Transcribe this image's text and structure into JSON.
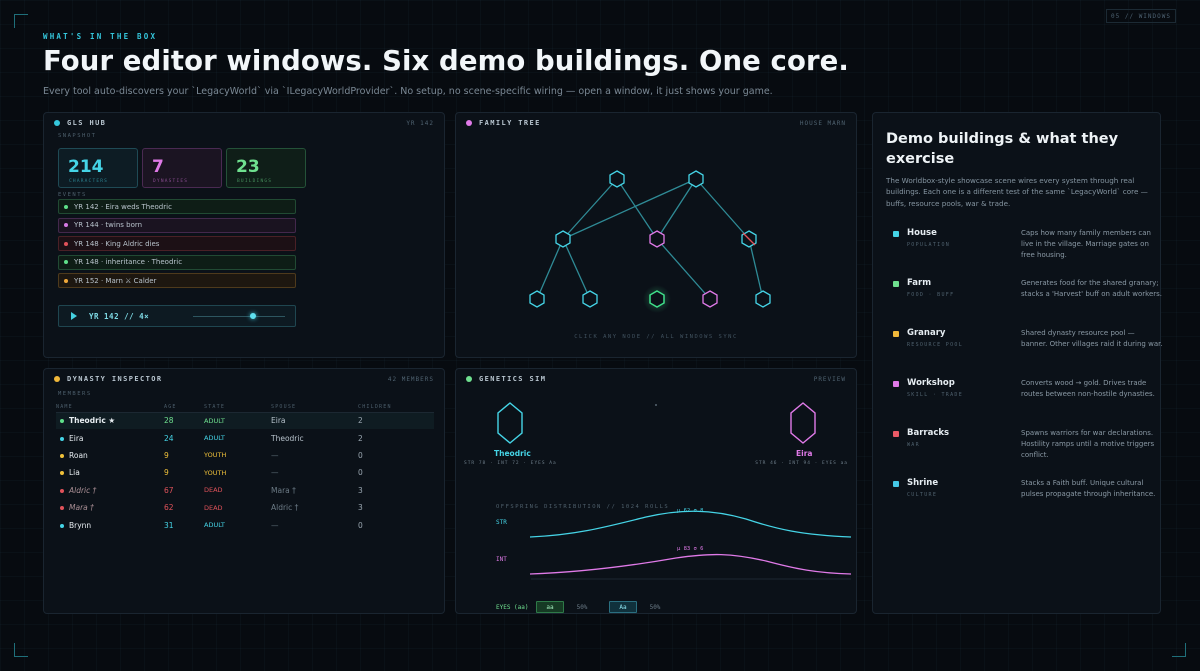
{
  "window": {
    "chip": "05 // WINDOWS"
  },
  "hero": {
    "eyebrow": "WHAT'S IN THE BOX",
    "headline": "Four editor windows. Six demo buildings. One core.",
    "subline": "Every tool auto-discovers your `LegacyWorld` via `ILegacyWorldProvider`. No setup, no scene-specific wiring — open a window, it just shows your game."
  },
  "gls_hub": {
    "title": "GLS HUB",
    "meta": "YR 142",
    "snapshot_label": "SNAPSHOT",
    "stats": [
      {
        "value": "214",
        "label": "CHARACTERS",
        "color": "#45d4e6"
      },
      {
        "value": "7",
        "label": "DYNASTIES",
        "color": "#e07ae8"
      },
      {
        "value": "23",
        "label": "BUILDINGS",
        "color": "#6fe08f"
      }
    ],
    "events_label": "EVENTS",
    "events": [
      {
        "text": "YR 142 · Eira weds Theodric",
        "color": "#5fe08a"
      },
      {
        "text": "YR 144 · twins born",
        "color": "#d67ae4"
      },
      {
        "text": "YR 148 · King Aldric dies",
        "color": "#e0525a"
      },
      {
        "text": "YR 148 · inheritance · Theodric",
        "color": "#5fe08a"
      },
      {
        "text": "YR 152 · Marn ⚔ Calder",
        "color": "#f0a83a"
      }
    ],
    "player_label": "YR 142 // 4×",
    "timeline_progress": 0.65
  },
  "family_tree": {
    "title": "FAMILY TREE",
    "meta": "HOUSE MARN",
    "footer": "CLICK ANY NODE // ALL WINDOWS SYNC"
  },
  "dynasty": {
    "title": "DYNASTY INSPECTOR",
    "meta": "42 MEMBERS",
    "members_label": "MEMBERS",
    "columns": [
      "NAME",
      "AGE",
      "STATE",
      "SPOUSE",
      "CHILDREN"
    ],
    "rows": [
      {
        "name": "Theodric ★",
        "age": "28",
        "state": "ADULT",
        "spouse": "Eira",
        "children": "2",
        "dot": "#5fe08a",
        "state_color": "#6fe08f",
        "age_color": "#6fe08f",
        "selected": true
      },
      {
        "name": "Eira",
        "age": "24",
        "state": "ADULT",
        "spouse": "Theodric",
        "children": "2",
        "dot": "#45d4e6",
        "state_color": "#45d4e6",
        "age_color": "#45d4e6"
      },
      {
        "name": "Roan",
        "age": "9",
        "state": "YOUTH",
        "spouse": "—",
        "children": "0",
        "dot": "#f0c13a",
        "state_color": "#f0c13a",
        "age_color": "#f0c13a"
      },
      {
        "name": "Lia",
        "age": "9",
        "state": "YOUTH",
        "spouse": "—",
        "children": "0",
        "dot": "#f0c13a",
        "state_color": "#f0c13a",
        "age_color": "#f0c13a"
      },
      {
        "name": "Aldric †",
        "age": "67",
        "state": "DEAD",
        "spouse": "Mara †",
        "children": "3",
        "dot": "#e0525a",
        "state_color": "#e0525a",
        "age_color": "#e0525a",
        "dead": true
      },
      {
        "name": "Mara †",
        "age": "62",
        "state": "DEAD",
        "spouse": "Aldric †",
        "children": "3",
        "dot": "#e0525a",
        "state_color": "#e0525a",
        "age_color": "#e0525a",
        "dead": true
      },
      {
        "name": "Brynn",
        "age": "31",
        "state": "ADULT",
        "spouse": "—",
        "children": "0",
        "dot": "#45d4e6",
        "state_color": "#45d4e6",
        "age_color": "#45d4e6"
      }
    ]
  },
  "genetics": {
    "title": "GENETICS SIM",
    "meta": "PREVIEW",
    "parent_a": {
      "name": "Theodric",
      "stats": "STR 78 · INT 72 · EYES Aa"
    },
    "parent_b": {
      "name": "Eira",
      "stats": "STR 46 · INT 94 · EYES aa"
    },
    "distribution_label": "OFFSPRING DISTRIBUTION // 1024 ROLLS",
    "str_label": "STR",
    "str_stat": "μ 62 σ 8",
    "int_label": "INT",
    "int_stat": "μ 83 σ 6",
    "eyes_label": "EYES (aa)",
    "eyes_a": "aa",
    "eyes_a_pct": "50%",
    "eyes_b": "Aa",
    "eyes_b_pct": "50%"
  },
  "demo": {
    "title": "Demo buildings & what they exercise",
    "description": "The Worldbox-style showcase scene wires every system through real buildings. Each one is a different test of the same `LegacyWorld` core — buffs, resource pools, war & trade.",
    "buildings": [
      {
        "name": "House",
        "tag": "POPULATION",
        "color": "#45d4e6",
        "desc": "Caps how many family members can live in the village. Marriage gates on free housing."
      },
      {
        "name": "Farm",
        "tag": "FOOD · BUFF",
        "color": "#6fe08f",
        "desc": "Generates food for the shared granary; stacks a 'Harvest' buff on adult workers."
      },
      {
        "name": "Granary",
        "tag": "RESOURCE POOL",
        "color": "#f0b83a",
        "desc": "Shared dynasty resource pool — banner. Other villages raid it during war."
      },
      {
        "name": "Workshop",
        "tag": "SKILL · TRADE",
        "color": "#e07ae8",
        "desc": "Converts wood → gold. Drives trade routes between non-hostile dynasties."
      },
      {
        "name": "Barracks",
        "tag": "WAR",
        "color": "#ea5a66",
        "desc": "Spawns warriors for war declarations. Hostility ramps until a motive triggers conflict."
      },
      {
        "name": "Shrine",
        "tag": "CULTURE",
        "color": "#45c8e6",
        "desc": "Stacks a Faith buff. Unique cultural pulses propagate through inheritance."
      }
    ]
  }
}
